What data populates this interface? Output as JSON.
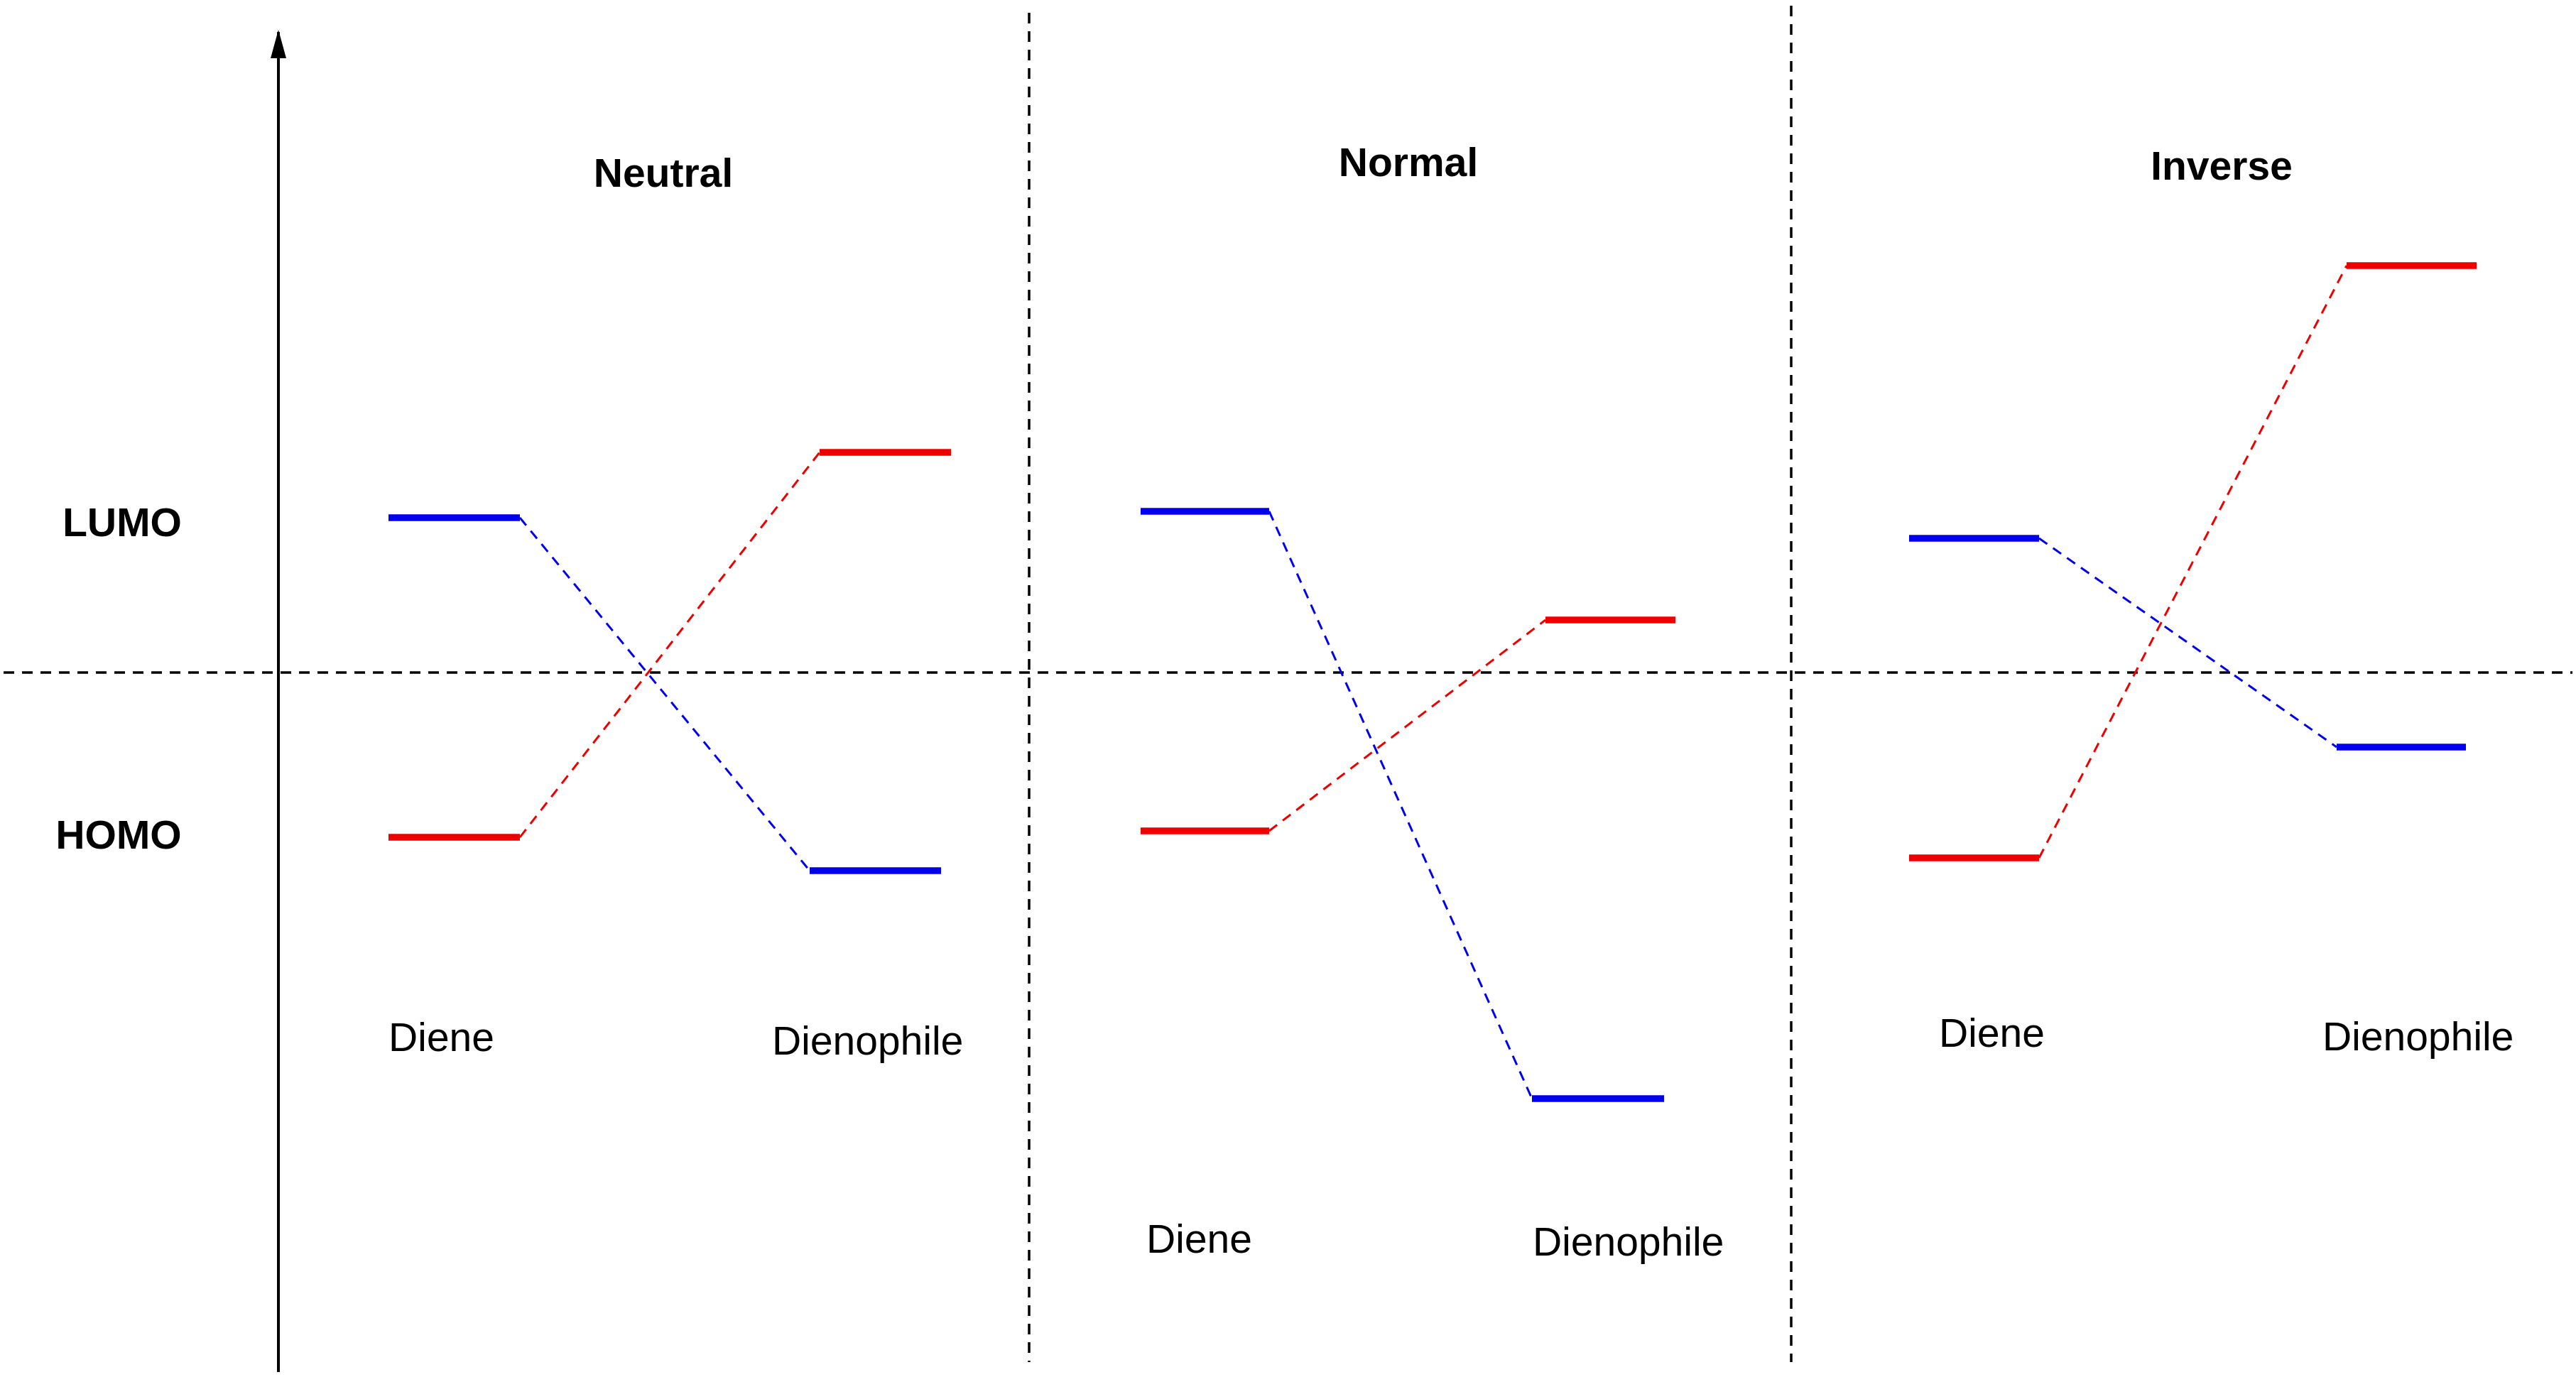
{
  "colors": {
    "diene_lumo_dienophile_homo": "#0000ee",
    "diene_homo_dienophile_lumo": "#ee0000",
    "lines": "#000000"
  },
  "axis_labels": {
    "lumo": "LUMO",
    "homo": "HOMO"
  },
  "panels": [
    {
      "title": "Neutral",
      "diene_label": "Diene",
      "dienophile_label": "Dienophile"
    },
    {
      "title": "Normal",
      "diene_label": "Diene",
      "dienophile_label": "Dienophile"
    },
    {
      "title": "Inverse",
      "diene_label": "Diene",
      "dienophile_label": "Dienophile"
    }
  ]
}
